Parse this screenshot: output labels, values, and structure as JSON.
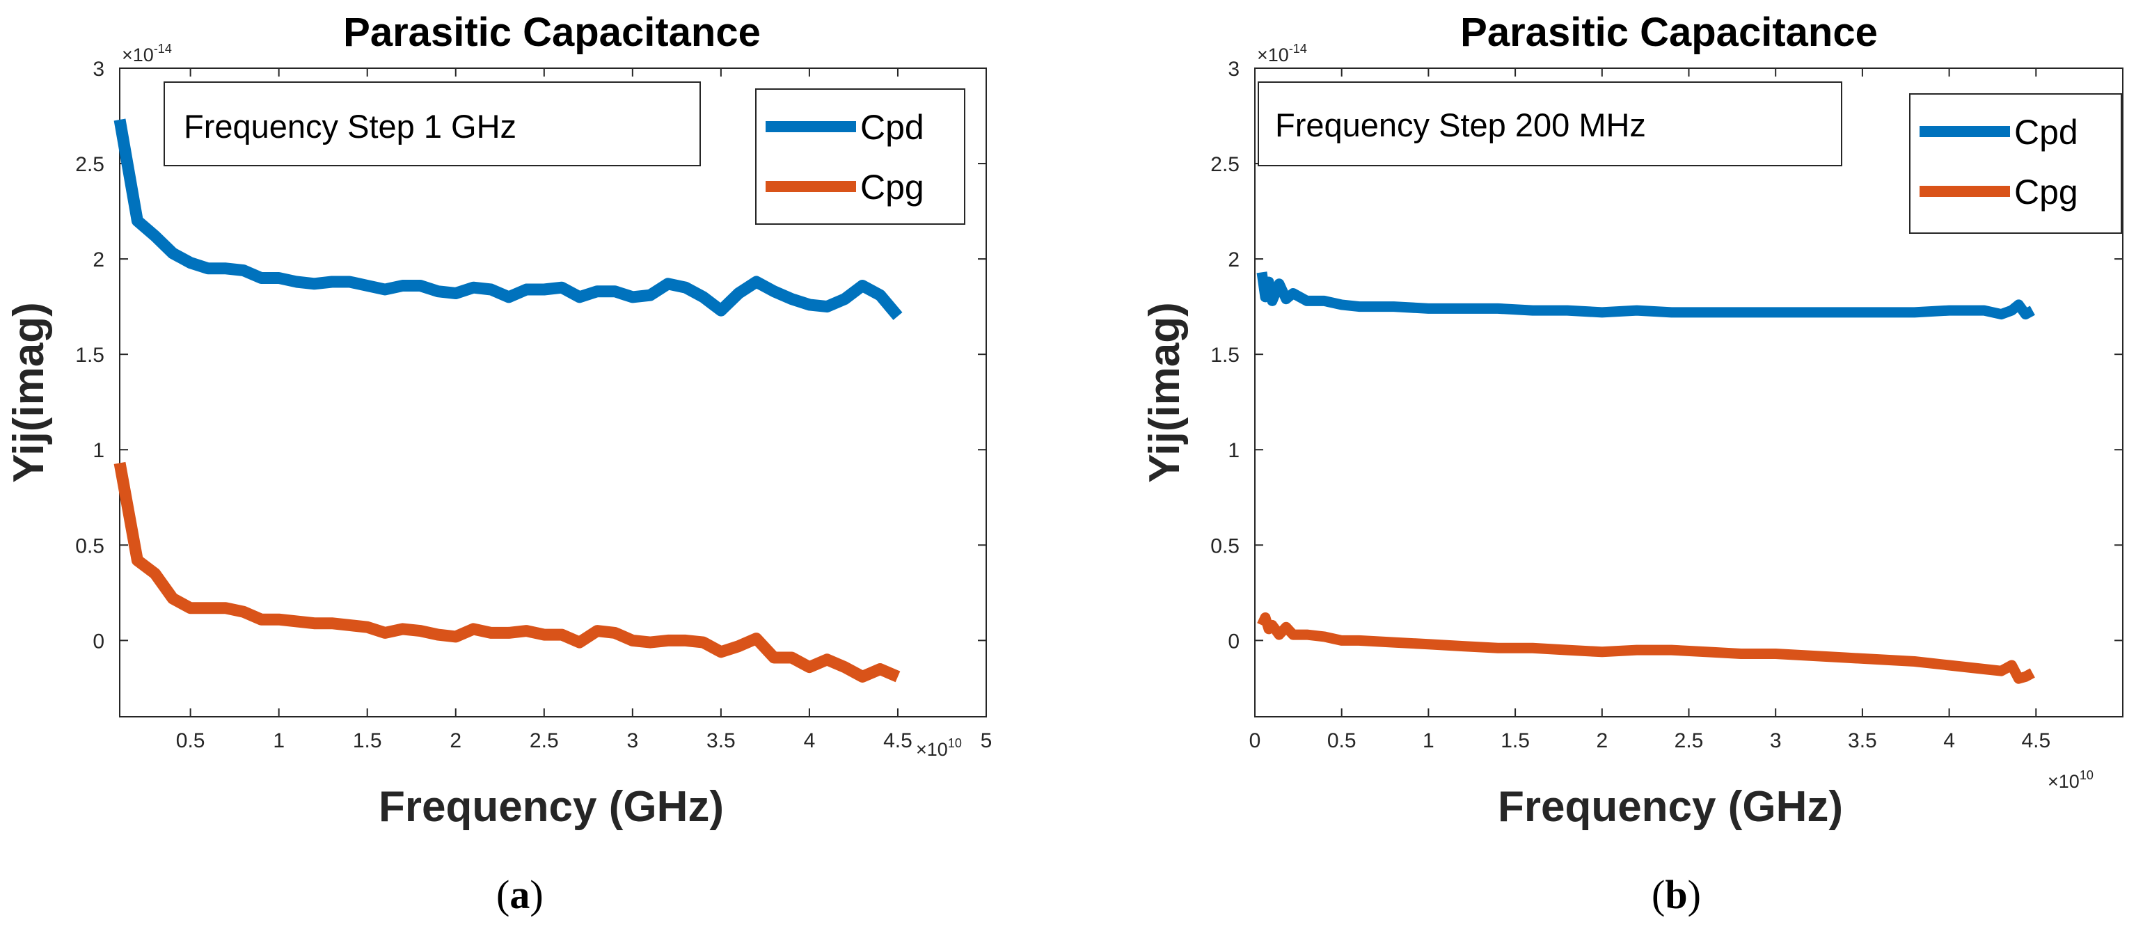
{
  "chart_data": [
    {
      "type": "line",
      "panel_label": "a",
      "title": "Parasitic Capacitance",
      "annotation": "Frequency Step 1 GHz",
      "xlabel": "Frequency (GHz)",
      "ylabel": "Yij(imag)",
      "x_multiplier": "×10",
      "x_exponent": "10",
      "y_multiplier": "×10",
      "y_exponent": "-14",
      "xlim": [
        0.1,
        5
      ],
      "ylim": [
        -0.4,
        3
      ],
      "xticks": [
        0.5,
        1,
        1.5,
        2,
        2.5,
        3,
        3.5,
        4,
        4.5,
        5
      ],
      "xtick_labels": [
        "0.5",
        "1",
        "1.5",
        "2",
        "2.5",
        "3",
        "3.5",
        "4",
        "4.5",
        "5"
      ],
      "yticks": [
        0,
        0.5,
        1,
        1.5,
        2,
        2.5,
        3
      ],
      "ytick_labels": [
        "0",
        "0.5",
        "1",
        "1.5",
        "2",
        "2.5",
        "3"
      ],
      "legend_position": "top-right",
      "series": [
        {
          "name": "Cpd",
          "color": "#0072BD",
          "x": [
            0.1,
            0.2,
            0.3,
            0.4,
            0.5,
            0.6,
            0.7,
            0.8,
            0.9,
            1.0,
            1.1,
            1.2,
            1.3,
            1.4,
            1.5,
            1.6,
            1.7,
            1.8,
            1.9,
            2.0,
            2.1,
            2.2,
            2.3,
            2.4,
            2.5,
            2.6,
            2.7,
            2.8,
            2.9,
            3.0,
            3.1,
            3.2,
            3.3,
            3.4,
            3.5,
            3.6,
            3.7,
            3.8,
            3.9,
            4.0,
            4.1,
            4.2,
            4.3,
            4.4,
            4.5
          ],
          "values": [
            2.73,
            2.2,
            2.12,
            2.03,
            1.98,
            1.95,
            1.95,
            1.94,
            1.9,
            1.9,
            1.88,
            1.87,
            1.88,
            1.88,
            1.86,
            1.84,
            1.86,
            1.86,
            1.83,
            1.82,
            1.85,
            1.84,
            1.8,
            1.84,
            1.84,
            1.85,
            1.8,
            1.83,
            1.83,
            1.8,
            1.81,
            1.87,
            1.85,
            1.8,
            1.73,
            1.82,
            1.88,
            1.83,
            1.79,
            1.76,
            1.75,
            1.79,
            1.86,
            1.81,
            1.7
          ]
        },
        {
          "name": "Cpg",
          "color": "#D95319",
          "x": [
            0.1,
            0.2,
            0.3,
            0.4,
            0.5,
            0.6,
            0.7,
            0.8,
            0.9,
            1.0,
            1.1,
            1.2,
            1.3,
            1.4,
            1.5,
            1.6,
            1.7,
            1.8,
            1.9,
            2.0,
            2.1,
            2.2,
            2.3,
            2.4,
            2.5,
            2.6,
            2.7,
            2.8,
            2.9,
            3.0,
            3.1,
            3.2,
            3.3,
            3.4,
            3.5,
            3.6,
            3.7,
            3.8,
            3.9,
            4.0,
            4.1,
            4.2,
            4.3,
            4.4,
            4.5
          ],
          "values": [
            0.93,
            0.42,
            0.35,
            0.22,
            0.17,
            0.17,
            0.17,
            0.15,
            0.11,
            0.11,
            0.1,
            0.09,
            0.09,
            0.08,
            0.07,
            0.04,
            0.06,
            0.05,
            0.03,
            0.02,
            0.06,
            0.04,
            0.04,
            0.05,
            0.03,
            0.03,
            -0.01,
            0.05,
            0.04,
            0.0,
            -0.01,
            0.0,
            0.0,
            -0.01,
            -0.06,
            -0.03,
            0.01,
            -0.09,
            -0.09,
            -0.14,
            -0.1,
            -0.14,
            -0.19,
            -0.15,
            -0.19
          ]
        }
      ]
    },
    {
      "type": "line",
      "panel_label": "b",
      "title": "Parasitic Capacitance",
      "annotation": "Frequency Step 200 MHz",
      "xlabel": "Frequency (GHz)",
      "ylabel": "Yij(imag)",
      "x_multiplier": "×10",
      "x_exponent": "10",
      "y_multiplier": "×10",
      "y_exponent": "-14",
      "xlim": [
        0,
        5
      ],
      "ylim": [
        -0.4,
        3
      ],
      "xticks": [
        0,
        0.5,
        1,
        1.5,
        2,
        2.5,
        3,
        3.5,
        4,
        4.5
      ],
      "xtick_labels": [
        "0",
        "0.5",
        "1",
        "1.5",
        "2",
        "2.5",
        "3",
        "3.5",
        "4",
        "4.5"
      ],
      "yticks": [
        0,
        0.5,
        1,
        1.5,
        2,
        2.5,
        3
      ],
      "ytick_labels": [
        "0",
        "0.5",
        "1",
        "1.5",
        "2",
        "2.5",
        "3"
      ],
      "legend_position": "top-right",
      "series": [
        {
          "name": "Cpd",
          "color": "#0072BD",
          "x": [
            0.04,
            0.06,
            0.08,
            0.1,
            0.14,
            0.18,
            0.22,
            0.3,
            0.4,
            0.5,
            0.6,
            0.8,
            1.0,
            1.2,
            1.4,
            1.6,
            1.8,
            2.0,
            2.2,
            2.4,
            2.6,
            2.8,
            3.0,
            3.2,
            3.4,
            3.6,
            3.8,
            4.0,
            4.2,
            4.3,
            4.36,
            4.4,
            4.44,
            4.48
          ],
          "values": [
            1.93,
            1.8,
            1.88,
            1.78,
            1.87,
            1.79,
            1.82,
            1.78,
            1.78,
            1.76,
            1.75,
            1.75,
            1.74,
            1.74,
            1.74,
            1.73,
            1.73,
            1.72,
            1.73,
            1.72,
            1.72,
            1.72,
            1.72,
            1.72,
            1.72,
            1.72,
            1.72,
            1.73,
            1.73,
            1.71,
            1.73,
            1.76,
            1.71,
            1.73
          ]
        },
        {
          "name": "Cpg",
          "color": "#D95319",
          "x": [
            0.04,
            0.06,
            0.08,
            0.1,
            0.14,
            0.18,
            0.22,
            0.3,
            0.4,
            0.5,
            0.6,
            0.8,
            1.0,
            1.2,
            1.4,
            1.6,
            1.8,
            2.0,
            2.2,
            2.4,
            2.6,
            2.8,
            3.0,
            3.2,
            3.4,
            3.6,
            3.8,
            4.0,
            4.2,
            4.3,
            4.36,
            4.4,
            4.44,
            4.48
          ],
          "values": [
            0.08,
            0.12,
            0.06,
            0.08,
            0.03,
            0.07,
            0.03,
            0.03,
            0.02,
            0.0,
            0.0,
            -0.01,
            -0.02,
            -0.03,
            -0.04,
            -0.04,
            -0.05,
            -0.06,
            -0.05,
            -0.05,
            -0.06,
            -0.07,
            -0.07,
            -0.08,
            -0.09,
            -0.1,
            -0.11,
            -0.13,
            -0.15,
            -0.16,
            -0.13,
            -0.2,
            -0.19,
            -0.17
          ]
        }
      ]
    }
  ]
}
